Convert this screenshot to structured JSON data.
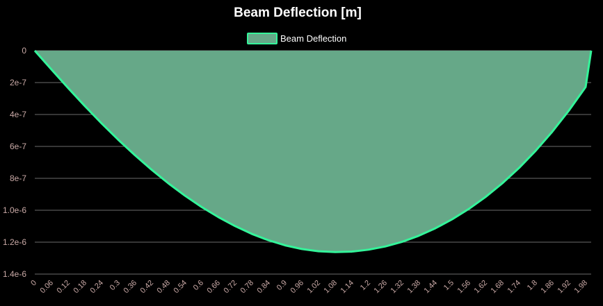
{
  "chart_data": {
    "type": "area",
    "title": "Beam Deflection [m]",
    "legend": {
      "label": "Beam Deflection",
      "position": "top-center"
    },
    "colors": {
      "fill": "#66a888",
      "line": "#34f49a",
      "background": "#000000",
      "grid": "#d8d8d8",
      "tick": "#c9a9a6",
      "title": "#ffffff"
    },
    "y_axis": {
      "inverted": true,
      "ylim": [
        0,
        1.4e-06
      ],
      "ticks": [
        0,
        2e-07,
        4e-07,
        6e-07,
        8e-07,
        1e-06,
        1.2e-06,
        1.4e-06
      ],
      "tick_labels": [
        "0",
        "2e-7",
        "4e-7",
        "6e-7",
        "8e-7",
        "1.0e-6",
        "1.2e-6",
        "1.4e-6"
      ],
      "grid": true
    },
    "x_axis": {
      "labels": [
        "0",
        "0.06",
        "0.12",
        "0.18",
        "0.24",
        "0.3",
        "0.36",
        "0.42",
        "0.48",
        "0.54",
        "0.6",
        "0.66",
        "0.72",
        "0.78",
        "0.84",
        "0.9",
        "0.96",
        "1.02",
        "1.08",
        "1.14",
        "1.2",
        "1.26",
        "1.32",
        "1.38",
        "1.44",
        "1.5",
        "1.56",
        "1.62",
        "1.68",
        "1.74",
        "1.8",
        "1.86",
        "1.92",
        "1.98"
      ],
      "xlim": [
        0,
        2.0
      ]
    },
    "series": [
      {
        "name": "Beam Deflection",
        "x": [
          0,
          0.06,
          0.12,
          0.18,
          0.24,
          0.3,
          0.36,
          0.42,
          0.48,
          0.54,
          0.6,
          0.66,
          0.72,
          0.78,
          0.84,
          0.9,
          0.96,
          1.02,
          1.08,
          1.14,
          1.2,
          1.26,
          1.32,
          1.38,
          1.44,
          1.5,
          1.56,
          1.62,
          1.68,
          1.74,
          1.8,
          1.86,
          1.92,
          1.98,
          2.0
        ],
        "values": [
          0,
          1.18e-07,
          2.34e-07,
          3.47e-07,
          4.55e-07,
          5.58e-07,
          6.55e-07,
          7.46e-07,
          8.31e-07,
          9.09e-07,
          9.8e-07,
          1.043e-06,
          1.099e-06,
          1.148e-06,
          1.188e-06,
          1.22e-06,
          1.243e-06,
          1.257e-06,
          1.262e-06,
          1.259e-06,
          1.247e-06,
          1.227e-06,
          1.198e-06,
          1.16e-06,
          1.113e-06,
          1.057e-06,
          9.92e-07,
          9.17e-07,
          8.32e-07,
          7.36e-07,
          6.28e-07,
          5.08e-07,
          3.75e-07,
          2.28e-07,
          0
        ]
      }
    ]
  }
}
